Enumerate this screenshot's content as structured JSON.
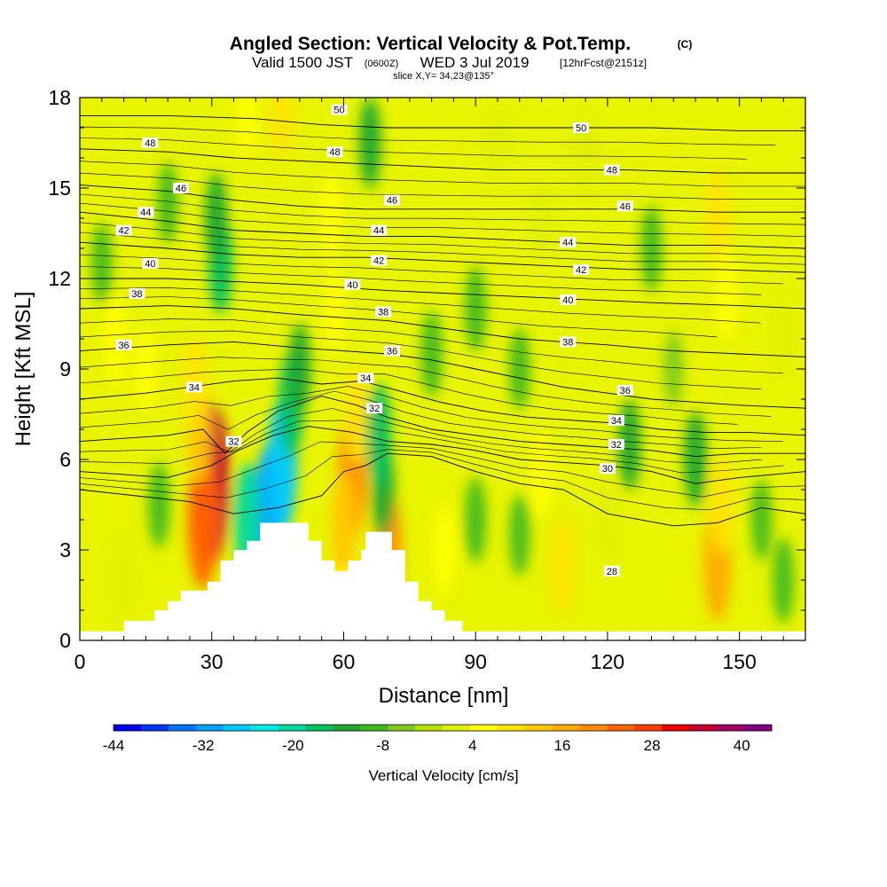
{
  "chart_data": {
    "type": "heatmap",
    "title": "Angled Section: Vertical Velocity & Pot.Temp.",
    "title_unit": "(C)",
    "subtitle": {
      "valid": "Valid 1500 JST",
      "zulu": "(0600Z)",
      "date": "WED 3 Jul 2019",
      "forecast": "[12hrFcst@2151z]"
    },
    "slice_label": "slice X,Y= 34,23@135°",
    "xlabel": "Distance [nm]",
    "ylabel": "Height [Kft MSL]",
    "xlim": [
      0,
      165
    ],
    "ylim": [
      0,
      18
    ],
    "x_ticks": [
      0,
      30,
      60,
      90,
      120,
      150
    ],
    "y_ticks": [
      0,
      3,
      6,
      9,
      12,
      15,
      18
    ],
    "colorbar": {
      "label": "Vertical Velocity [cm/s]",
      "range": [
        -44,
        44
      ],
      "step": 4,
      "tick_labels": [
        -44,
        -32,
        -20,
        -8,
        4,
        16,
        28,
        40
      ],
      "colors": [
        "#0000f0",
        "#0036f6",
        "#0070ff",
        "#00a0ff",
        "#00c8ff",
        "#00e8e8",
        "#00d8a0",
        "#00c060",
        "#20a830",
        "#40b820",
        "#80c820",
        "#b8e000",
        "#e0f000",
        "#ffff00",
        "#ffe400",
        "#ffc800",
        "#ffaa00",
        "#ff8c00",
        "#ff6400",
        "#ff3c00",
        "#e80000",
        "#c80030",
        "#a00060",
        "#800080"
      ]
    },
    "velocity_cells": [
      {
        "x": 30,
        "y": 5.2,
        "v": 40
      },
      {
        "x": 28,
        "y": 4.0,
        "v": 30
      },
      {
        "x": 27,
        "y": 7.0,
        "v": 18
      },
      {
        "x": 26,
        "y": 8.5,
        "v": 12
      },
      {
        "x": 43,
        "y": 4.2,
        "v": -30
      },
      {
        "x": 46,
        "y": 5.8,
        "v": -28
      },
      {
        "x": 48,
        "y": 7.8,
        "v": -16
      },
      {
        "x": 50,
        "y": 9.0,
        "v": -10
      },
      {
        "x": 38,
        "y": 4.0,
        "v": -20
      },
      {
        "x": 62,
        "y": 5.5,
        "v": 26
      },
      {
        "x": 60,
        "y": 3.8,
        "v": 18
      },
      {
        "x": 63,
        "y": 7.5,
        "v": 14
      },
      {
        "x": 70,
        "y": 3.0,
        "v": 24
      },
      {
        "x": 69,
        "y": 5.0,
        "v": -12
      },
      {
        "x": 68,
        "y": 6.8,
        "v": -16
      },
      {
        "x": 32,
        "y": 12.5,
        "v": -14
      },
      {
        "x": 31,
        "y": 14.0,
        "v": -10
      },
      {
        "x": 66,
        "y": 16.5,
        "v": -10
      },
      {
        "x": 57,
        "y": 14.0,
        "v": 10
      },
      {
        "x": 58,
        "y": 11.0,
        "v": 8
      },
      {
        "x": 38,
        "y": 17.5,
        "v": 10
      },
      {
        "x": 46,
        "y": 17.5,
        "v": 12
      },
      {
        "x": 18,
        "y": 4.5,
        "v": -8
      },
      {
        "x": 8,
        "y": 10.0,
        "v": 10
      },
      {
        "x": 5,
        "y": 12.5,
        "v": -6
      },
      {
        "x": 15,
        "y": 9.0,
        "v": 8
      },
      {
        "x": 60,
        "y": 1.0,
        "v": 8
      },
      {
        "x": 83,
        "y": 3.0,
        "v": 10
      },
      {
        "x": 90,
        "y": 4.0,
        "v": -8
      },
      {
        "x": 100,
        "y": 3.5,
        "v": -6
      },
      {
        "x": 110,
        "y": 2.5,
        "v": 12
      },
      {
        "x": 105,
        "y": 5.5,
        "v": 8
      },
      {
        "x": 120,
        "y": 4.0,
        "v": 6
      },
      {
        "x": 125,
        "y": 6.5,
        "v": -10
      },
      {
        "x": 140,
        "y": 6.0,
        "v": -12
      },
      {
        "x": 145,
        "y": 2.6,
        "v": 22
      },
      {
        "x": 146,
        "y": 4.5,
        "v": 14
      },
      {
        "x": 155,
        "y": 4.0,
        "v": -6
      },
      {
        "x": 160,
        "y": 2.0,
        "v": -8
      },
      {
        "x": 130,
        "y": 13.0,
        "v": -8
      },
      {
        "x": 145,
        "y": 14.0,
        "v": 12
      },
      {
        "x": 147,
        "y": 11.5,
        "v": 10
      },
      {
        "x": 90,
        "y": 11.0,
        "v": -8
      },
      {
        "x": 80,
        "y": 9.5,
        "v": -8
      },
      {
        "x": 100,
        "y": 9.0,
        "v": -6
      },
      {
        "x": 115,
        "y": 16.0,
        "v": 6
      },
      {
        "x": 105,
        "y": 14.0,
        "v": 6
      },
      {
        "x": 160,
        "y": 10.0,
        "v": 4
      },
      {
        "x": 135,
        "y": 9.0,
        "v": -4
      },
      {
        "x": 95,
        "y": 16.5,
        "v": 4
      },
      {
        "x": 20,
        "y": 14.5,
        "v": -6
      },
      {
        "x": 10,
        "y": 2.0,
        "v": 6
      }
    ],
    "terrain": [
      [
        0,
        0.3
      ],
      [
        10,
        0.3
      ],
      [
        10,
        0.65
      ],
      [
        17,
        0.65
      ],
      [
        17,
        1.0
      ],
      [
        20,
        1.0
      ],
      [
        20,
        1.3
      ],
      [
        23,
        1.3
      ],
      [
        23,
        1.65
      ],
      [
        29,
        1.65
      ],
      [
        29,
        1.95
      ],
      [
        32,
        1.95
      ],
      [
        32,
        2.65
      ],
      [
        35,
        2.65
      ],
      [
        35,
        3.0
      ],
      [
        38,
        3.0
      ],
      [
        38,
        3.3
      ],
      [
        41,
        3.3
      ],
      [
        41,
        3.9
      ],
      [
        52,
        3.9
      ],
      [
        52,
        3.3
      ],
      [
        55,
        3.3
      ],
      [
        55,
        2.65
      ],
      [
        58,
        2.65
      ],
      [
        58,
        2.3
      ],
      [
        61,
        2.3
      ],
      [
        61,
        2.65
      ],
      [
        64,
        2.65
      ],
      [
        64,
        3.0
      ],
      [
        65,
        3.0
      ],
      [
        65,
        3.6
      ],
      [
        71,
        3.6
      ],
      [
        71,
        3.0
      ],
      [
        74,
        3.0
      ],
      [
        74,
        1.95
      ],
      [
        77,
        1.95
      ],
      [
        77,
        1.3
      ],
      [
        80,
        1.3
      ],
      [
        80,
        1.0
      ],
      [
        83,
        1.0
      ],
      [
        83,
        0.65
      ],
      [
        87,
        0.65
      ],
      [
        87,
        0.3
      ],
      [
        165,
        0.3
      ]
    ],
    "isentropes": [
      {
        "value": 28,
        "points": [
          [
            0,
            5.0
          ],
          [
            25,
            4.6
          ],
          [
            35,
            4.2
          ],
          [
            45,
            4.4
          ],
          [
            55,
            4.8
          ],
          [
            60,
            5.6
          ],
          [
            65,
            5.8
          ],
          [
            70,
            6.2
          ],
          [
            80,
            6.1
          ],
          [
            90,
            5.6
          ],
          [
            100,
            5.2
          ],
          [
            110,
            5.0
          ],
          [
            120,
            4.2
          ],
          [
            135,
            3.8
          ],
          [
            145,
            3.9
          ],
          [
            155,
            4.4
          ],
          [
            165,
            4.2
          ]
        ],
        "label": {
          "x": 121,
          "y": 2.3
        }
      },
      {
        "value": 30,
        "points": [
          [
            0,
            5.6
          ],
          [
            20,
            5.4
          ],
          [
            30,
            5.8
          ],
          [
            36,
            6.3
          ],
          [
            44,
            6.8
          ],
          [
            52,
            7.1
          ],
          [
            62,
            6.9
          ],
          [
            70,
            6.6
          ],
          [
            80,
            6.5
          ],
          [
            90,
            6.3
          ],
          [
            100,
            6.0
          ],
          [
            110,
            5.9
          ],
          [
            120,
            5.8
          ],
          [
            130,
            5.6
          ],
          [
            140,
            5.2
          ],
          [
            150,
            5.4
          ],
          [
            165,
            5.6
          ]
        ],
        "label": {
          "x": 120,
          "y": 5.7
        }
      },
      {
        "value": 32,
        "points": [
          [
            0,
            6.6
          ],
          [
            20,
            6.8
          ],
          [
            28,
            7.0
          ],
          [
            33,
            6.2
          ],
          [
            38,
            6.9
          ],
          [
            45,
            7.6
          ],
          [
            55,
            8.1
          ],
          [
            63,
            7.8
          ],
          [
            70,
            7.4
          ],
          [
            80,
            7.0
          ],
          [
            90,
            6.8
          ],
          [
            100,
            6.6
          ],
          [
            110,
            6.5
          ],
          [
            120,
            6.4
          ],
          [
            130,
            6.3
          ],
          [
            140,
            6.1
          ],
          [
            150,
            6.2
          ],
          [
            165,
            6.2
          ]
        ],
        "label": {
          "x": 122,
          "y": 6.5
        }
      },
      {
        "value": 34,
        "points": [
          [
            0,
            8.0
          ],
          [
            15,
            8.2
          ],
          [
            25,
            8.4
          ],
          [
            35,
            8.6
          ],
          [
            45,
            8.7
          ],
          [
            55,
            8.5
          ],
          [
            64,
            8.6
          ],
          [
            72,
            8.3
          ],
          [
            82,
            7.9
          ],
          [
            92,
            7.6
          ],
          [
            102,
            7.4
          ],
          [
            112,
            7.3
          ],
          [
            122,
            7.2
          ],
          [
            132,
            7.0
          ],
          [
            142,
            6.9
          ],
          [
            152,
            6.9
          ],
          [
            165,
            6.8
          ]
        ],
        "label": {
          "x": 122,
          "y": 7.3
        }
      },
      {
        "value": 36,
        "points": [
          [
            0,
            9.6
          ],
          [
            20,
            9.8
          ],
          [
            35,
            9.9
          ],
          [
            50,
            9.7
          ],
          [
            60,
            9.6
          ],
          [
            70,
            9.5
          ],
          [
            80,
            9.3
          ],
          [
            90,
            9.0
          ],
          [
            100,
            8.7
          ],
          [
            110,
            8.4
          ],
          [
            120,
            8.2
          ],
          [
            130,
            8.0
          ],
          [
            140,
            7.9
          ],
          [
            150,
            7.8
          ],
          [
            165,
            7.7
          ]
        ],
        "label": {
          "x": 124,
          "y": 8.3
        }
      },
      {
        "value": 38,
        "points": [
          [
            0,
            11.0
          ],
          [
            20,
            11.1
          ],
          [
            35,
            11.0
          ],
          [
            50,
            10.8
          ],
          [
            60,
            10.7
          ],
          [
            70,
            10.6
          ],
          [
            80,
            10.4
          ],
          [
            90,
            10.2
          ],
          [
            100,
            10.0
          ],
          [
            110,
            9.9
          ],
          [
            120,
            9.8
          ],
          [
            135,
            9.6
          ],
          [
            150,
            9.5
          ],
          [
            165,
            9.4
          ]
        ],
        "label": {
          "x": 111,
          "y": 9.9
        }
      },
      {
        "value": 40,
        "points": [
          [
            0,
            12.0
          ],
          [
            20,
            12.0
          ],
          [
            35,
            11.9
          ],
          [
            50,
            11.8
          ],
          [
            60,
            11.7
          ],
          [
            70,
            11.6
          ],
          [
            85,
            11.5
          ],
          [
            100,
            11.4
          ],
          [
            115,
            11.3
          ],
          [
            130,
            11.2
          ],
          [
            150,
            11.1
          ],
          [
            165,
            11.0
          ]
        ],
        "label": {
          "x": 111,
          "y": 11.3
        }
      },
      {
        "value": 42,
        "points": [
          [
            0,
            13.2
          ],
          [
            20,
            13.0
          ],
          [
            35,
            12.8
          ],
          [
            50,
            12.7
          ],
          [
            65,
            12.7
          ],
          [
            80,
            12.6
          ],
          [
            95,
            12.5
          ],
          [
            110,
            12.4
          ],
          [
            125,
            12.3
          ],
          [
            145,
            12.3
          ],
          [
            165,
            12.2
          ]
        ],
        "label": {
          "x": 114,
          "y": 12.3
        }
      },
      {
        "value": 44,
        "points": [
          [
            0,
            14.2
          ],
          [
            20,
            13.9
          ],
          [
            35,
            13.6
          ],
          [
            50,
            13.5
          ],
          [
            65,
            13.4
          ],
          [
            80,
            13.4
          ],
          [
            95,
            13.3
          ],
          [
            110,
            13.2
          ],
          [
            125,
            13.1
          ],
          [
            145,
            13.1
          ],
          [
            165,
            13.0
          ]
        ],
        "label": {
          "x": 111,
          "y": 13.2
        }
      },
      {
        "value": 46,
        "points": [
          [
            0,
            15.1
          ],
          [
            20,
            14.9
          ],
          [
            35,
            14.6
          ],
          [
            50,
            14.4
          ],
          [
            65,
            14.3
          ],
          [
            80,
            14.3
          ],
          [
            95,
            14.3
          ],
          [
            110,
            14.3
          ],
          [
            125,
            14.3
          ],
          [
            145,
            14.2
          ],
          [
            165,
            14.2
          ]
        ],
        "label": {
          "x": 124,
          "y": 14.4
        }
      },
      {
        "value": 48,
        "points": [
          [
            0,
            16.3
          ],
          [
            20,
            16.2
          ],
          [
            35,
            16.0
          ],
          [
            50,
            15.9
          ],
          [
            65,
            15.8
          ],
          [
            80,
            15.7
          ],
          [
            95,
            15.6
          ],
          [
            110,
            15.6
          ],
          [
            125,
            15.6
          ],
          [
            145,
            15.5
          ],
          [
            165,
            15.5
          ]
        ],
        "label": {
          "x": 121,
          "y": 15.6
        }
      },
      {
        "value": 50,
        "points": [
          [
            0,
            17.4
          ],
          [
            20,
            17.4
          ],
          [
            40,
            17.3
          ],
          [
            55,
            17.1
          ],
          [
            70,
            17.0
          ],
          [
            90,
            17.0
          ],
          [
            110,
            17.0
          ],
          [
            130,
            17.0
          ],
          [
            150,
            16.9
          ],
          [
            165,
            16.9
          ]
        ],
        "label": {
          "x": 114,
          "y": 17.0
        }
      }
    ],
    "isentrope_labels_extra": [
      {
        "text": "48",
        "x": 16,
        "y": 16.5
      },
      {
        "text": "46",
        "x": 23,
        "y": 15.0
      },
      {
        "text": "44",
        "x": 15,
        "y": 14.2
      },
      {
        "text": "42",
        "x": 10,
        "y": 13.6
      },
      {
        "text": "40",
        "x": 16,
        "y": 12.5
      },
      {
        "text": "38",
        "x": 13,
        "y": 11.5
      },
      {
        "text": "36",
        "x": 10,
        "y": 9.8
      },
      {
        "text": "34",
        "x": 26,
        "y": 8.4
      },
      {
        "text": "32",
        "x": 35,
        "y": 6.6
      },
      {
        "text": "50",
        "x": 59,
        "y": 17.6
      },
      {
        "text": "48",
        "x": 58,
        "y": 16.2
      },
      {
        "text": "46",
        "x": 71,
        "y": 14.6
      },
      {
        "text": "44",
        "x": 68,
        "y": 13.6
      },
      {
        "text": "42",
        "x": 68,
        "y": 12.6
      },
      {
        "text": "40",
        "x": 62,
        "y": 11.8
      },
      {
        "text": "38",
        "x": 69,
        "y": 10.9
      },
      {
        "text": "36",
        "x": 71,
        "y": 9.6
      },
      {
        "text": "34",
        "x": 65,
        "y": 8.7
      },
      {
        "text": "32",
        "x": 67,
        "y": 7.7
      }
    ]
  }
}
